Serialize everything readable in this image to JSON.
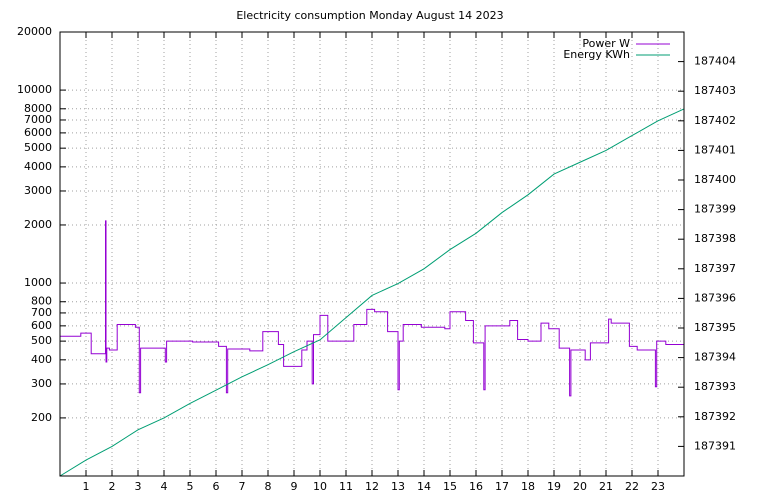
{
  "chart_data": {
    "type": "line",
    "title": "Electricity consumption Monday August 14 2023",
    "log_y": true,
    "grid": true,
    "legend": "top-right",
    "xlim": [
      0,
      24
    ],
    "xticks": [
      1,
      2,
      3,
      4,
      5,
      6,
      7,
      8,
      9,
      10,
      11,
      12,
      13,
      14,
      15,
      16,
      17,
      18,
      19,
      20,
      21,
      22,
      23
    ],
    "ylim": [
      100,
      20000
    ],
    "yticks": [
      200,
      300,
      400,
      500,
      600,
      700,
      800,
      1000,
      2000,
      3000,
      4000,
      5000,
      6000,
      7000,
      8000,
      10000,
      20000
    ],
    "y2lim": [
      187390,
      187405
    ],
    "y2ticks": [
      187391,
      187392,
      187393,
      187394,
      187395,
      187396,
      187397,
      187398,
      187399,
      187400,
      187401,
      187402,
      187403,
      187404
    ],
    "series": [
      {
        "name": "Power W",
        "color": "#9400d3",
        "steps": true,
        "x": [
          0,
          0.8,
          1.2,
          1.75,
          1.77,
          1.8,
          1.9,
          2.2,
          2.9,
          3.05,
          3.1,
          4.05,
          4.1,
          5.1,
          6.1,
          6.4,
          6.45,
          7.3,
          7.8,
          8.4,
          8.6,
          9.3,
          9.5,
          9.7,
          9.75,
          10,
          10.3,
          11.3,
          11.8,
          12.1,
          12.6,
          13,
          13.05,
          13.2,
          13.9,
          14.8,
          15,
          15.6,
          15.9,
          16.3,
          16.35,
          17.3,
          17.6,
          18,
          18.5,
          18.8,
          19.2,
          19.6,
          19.65,
          20.2,
          20.4,
          21.1,
          21.2,
          21.9,
          22.2,
          22.9,
          22.95,
          23.3,
          24
        ],
        "values": [
          530,
          550,
          430,
          2100,
          390,
          460,
          450,
          610,
          590,
          270,
          460,
          390,
          500,
          495,
          470,
          270,
          455,
          445,
          560,
          480,
          370,
          450,
          500,
          300,
          540,
          680,
          500,
          610,
          730,
          710,
          560,
          280,
          500,
          610,
          590,
          580,
          710,
          640,
          490,
          280,
          600,
          640,
          510,
          500,
          620,
          580,
          460,
          260,
          450,
          400,
          490,
          650,
          620,
          470,
          450,
          290,
          500,
          480,
          480
        ]
      },
      {
        "name": "Energy KWh",
        "color": "#009e73",
        "axis": "y2",
        "x": [
          0,
          1,
          2,
          3,
          4,
          5,
          6,
          7,
          8,
          9,
          10,
          11,
          12,
          13,
          14,
          15,
          16,
          17,
          18,
          19,
          20,
          21,
          22,
          23,
          24
        ],
        "values": [
          187390.0,
          187390.54,
          187391.0,
          187391.56,
          187391.96,
          187392.45,
          187392.9,
          187393.35,
          187393.76,
          187394.2,
          187394.6,
          187395.35,
          187396.1,
          187396.5,
          187397.0,
          187397.65,
          187398.2,
          187398.9,
          187399.5,
          187400.2,
          187400.6,
          187401.0,
          187401.5,
          187402.0,
          187402.4
        ]
      }
    ]
  }
}
